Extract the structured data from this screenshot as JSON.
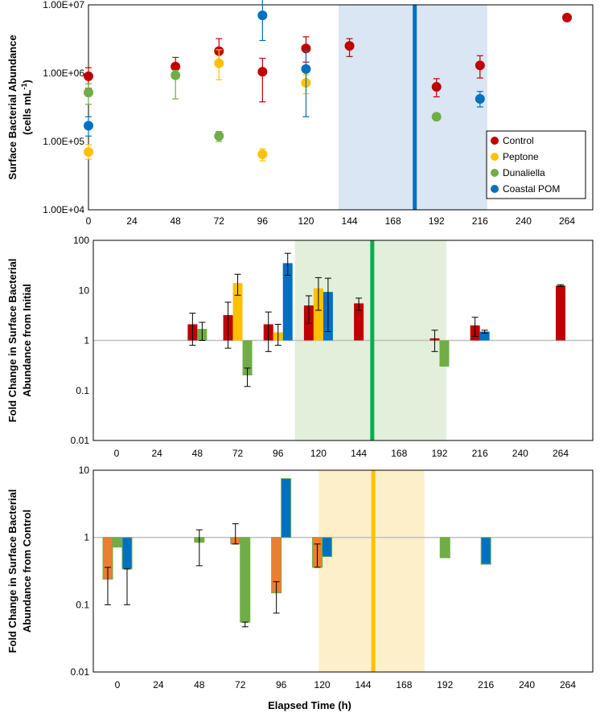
{
  "colors": {
    "control": "#c00000",
    "peptone": "#ffc000",
    "dunaliella": "#70ad47",
    "coastal": "#0070c0",
    "peptone_bar": "#ed7d31",
    "shade_blue": "#dae6f3",
    "shade_green": "#e2efda",
    "shade_orange": "#fdefc9",
    "line_blue": "#0070c0",
    "line_green": "#00b050",
    "line_orange": "#ffc000"
  },
  "x_axis_title": "Elapsed Time (h)",
  "chart_data": [
    {
      "type": "scatter",
      "ylabel_line1": "Surface Bacterial Abundance",
      "ylabel_line2_prefix": "(cells mL",
      "ylabel_line2_sup": "-1",
      "ylabel_line2_suffix": ")",
      "yscale": "log",
      "ylim": [
        10000,
        10000000
      ],
      "xlim": [
        0,
        264
      ],
      "xticks": [
        0,
        24,
        48,
        72,
        96,
        120,
        144,
        168,
        192,
        216,
        240,
        264
      ],
      "xtick_labels": [
        "0",
        "24",
        "48",
        "72",
        "96",
        "120",
        "144",
        "168",
        "192",
        "216",
        "240",
        "264"
      ],
      "yticks": [
        10000,
        100000,
        1000000,
        10000000
      ],
      "ytick_labels": [
        "1.00E+04",
        "1.00E+05",
        "1.00E+06",
        "1.00E+07"
      ],
      "shaded_region": [
        138,
        220
      ],
      "vline": 180,
      "legend": {
        "position": "bottom-right",
        "entries": [
          "Control",
          "Peptone",
          "Dunaliella",
          "Coastal POM"
        ]
      },
      "series": [
        {
          "name": "Control",
          "key": "control",
          "points": [
            {
              "x": 0,
              "y": 900000,
              "lo": 600000,
              "hi": 1200000
            },
            {
              "x": 48,
              "y": 1250000,
              "lo": 850000,
              "hi": 1700000
            },
            {
              "x": 72,
              "y": 2100000,
              "lo": 1350000,
              "hi": 3200000
            },
            {
              "x": 96,
              "y": 1050000,
              "lo": 380000,
              "hi": 1650000
            },
            {
              "x": 120,
              "y": 2300000,
              "lo": 1450000,
              "hi": 3400000
            },
            {
              "x": 144,
              "y": 2500000,
              "lo": 1750000,
              "hi": 3200000
            },
            {
              "x": 192,
              "y": 630000,
              "lo": 450000,
              "hi": 830000
            },
            {
              "x": 216,
              "y": 1300000,
              "lo": 850000,
              "hi": 1800000
            },
            {
              "x": 264,
              "y": 6500000,
              "lo": 6300000,
              "hi": 6700000
            }
          ]
        },
        {
          "name": "Peptone",
          "key": "peptone",
          "points": [
            {
              "x": 0,
              "y": 70000,
              "lo": 55000,
              "hi": 90000
            },
            {
              "x": 72,
              "y": 1400000,
              "lo": 800000,
              "hi": 2200000
            },
            {
              "x": 96,
              "y": 65000,
              "lo": 52000,
              "hi": 78000
            },
            {
              "x": 120,
              "y": 720000,
              "lo": 500000,
              "hi": 950000
            }
          ]
        },
        {
          "name": "Dunaliella",
          "key": "dunaliella",
          "points": [
            {
              "x": 0,
              "y": 520000,
              "lo": 350000,
              "hi": 700000
            },
            {
              "x": 48,
              "y": 930000,
              "lo": 420000,
              "hi": 1100000
            },
            {
              "x": 72,
              "y": 120000,
              "lo": 100000,
              "hi": 140000
            },
            {
              "x": 192,
              "y": 230000,
              "lo": 220000,
              "hi": 240000
            }
          ]
        },
        {
          "name": "Coastal POM",
          "key": "coastal",
          "points": [
            {
              "x": 0,
              "y": 170000,
              "lo": 120000,
              "hi": 230000
            },
            {
              "x": 96,
              "y": 7000000,
              "lo": 3000000,
              "hi": 12000000
            },
            {
              "x": 120,
              "y": 1150000,
              "lo": 230000,
              "hi": 2100000
            },
            {
              "x": 216,
              "y": 420000,
              "lo": 320000,
              "hi": 540000
            }
          ]
        }
      ]
    },
    {
      "type": "bar",
      "ylabel_line1": "Fold Change in Surface Bacterial",
      "ylabel_line2": "Abundance from Initial",
      "yscale": "log",
      "ylim": [
        0.01,
        100
      ],
      "baseline": 1,
      "xticks": [
        0,
        24,
        48,
        72,
        96,
        120,
        144,
        168,
        192,
        216,
        240,
        264
      ],
      "xtick_labels": [
        "0",
        "24",
        "48",
        "72",
        "96",
        "120",
        "144",
        "168",
        "192",
        "216",
        "240",
        "264"
      ],
      "yticks": [
        0.01,
        0.1,
        1,
        10,
        100
      ],
      "ytick_labels": [
        "0.01",
        "0.1",
        "1",
        "10",
        "100"
      ],
      "shaded_region": [
        106,
        196
      ],
      "vline": 152,
      "series_order": [
        "control",
        "peptone",
        "dunaliella",
        "coastal"
      ],
      "bars": [
        {
          "x": 48,
          "key": "control",
          "v": 2.1,
          "lo": 0.8,
          "hi": 3.5
        },
        {
          "x": 48,
          "key": "dunaliella",
          "v": 1.7,
          "lo": 1.0,
          "hi": 2.3
        },
        {
          "x": 72,
          "key": "control",
          "v": 3.2,
          "lo": 0.7,
          "hi": 5.8
        },
        {
          "x": 72,
          "key": "peptone",
          "v": 14,
          "lo": 8,
          "hi": 21
        },
        {
          "x": 72,
          "key": "dunaliella",
          "v": 0.2,
          "lo": 0.12,
          "hi": 0.28
        },
        {
          "x": 96,
          "key": "control",
          "v": 2.1,
          "lo": 0.6,
          "hi": 3.7
        },
        {
          "x": 96,
          "key": "peptone",
          "v": 1.45,
          "lo": 0.8,
          "hi": 2.1
        },
        {
          "x": 96,
          "key": "coastal",
          "v": 35,
          "lo": 20,
          "hi": 55
        },
        {
          "x": 120,
          "key": "control",
          "v": 5,
          "lo": 2.2,
          "hi": 7.8
        },
        {
          "x": 120,
          "key": "peptone",
          "v": 11,
          "lo": 4,
          "hi": 18
        },
        {
          "x": 120,
          "key": "coastal",
          "v": 9.3,
          "lo": 1.5,
          "hi": 17.5
        },
        {
          "x": 144,
          "key": "control",
          "v": 5.5,
          "lo": 4.0,
          "hi": 7.0
        },
        {
          "x": 192,
          "key": "control",
          "v": 1.1,
          "lo": 0.6,
          "hi": 1.6
        },
        {
          "x": 192,
          "key": "dunaliella",
          "v": 0.3,
          "lo": 0.3,
          "hi": 0.3
        },
        {
          "x": 216,
          "key": "control",
          "v": 2.0,
          "lo": 1.2,
          "hi": 2.9
        },
        {
          "x": 216,
          "key": "coastal",
          "v": 1.5,
          "lo": 1.4,
          "hi": 1.6
        },
        {
          "x": 264,
          "key": "control",
          "v": 12.5,
          "lo": 12.0,
          "hi": 13.0
        }
      ]
    },
    {
      "type": "bar",
      "ylabel_line1": "Fold Change in Surface Bacterial",
      "ylabel_line2": "Abundance from Control",
      "yscale": "log",
      "ylim": [
        0.01,
        10
      ],
      "baseline": 1,
      "xticks": [
        0,
        24,
        48,
        72,
        96,
        120,
        144,
        168,
        192,
        216,
        240,
        264
      ],
      "xtick_labels": [
        "0",
        "24",
        "48",
        "72",
        "96",
        "120",
        "144",
        "168",
        "192",
        "216",
        "240",
        "264"
      ],
      "yticks": [
        0.01,
        0.1,
        1,
        10
      ],
      "ytick_labels": [
        "0.01",
        "0.1",
        "1",
        "10"
      ],
      "shaded_region": [
        118,
        180
      ],
      "vline": 150,
      "series_order": [
        "peptone_bar",
        "dunaliella",
        "coastal"
      ],
      "bars": [
        {
          "x": 0,
          "key": "peptone_bar",
          "v": 0.24,
          "lo": 0.1,
          "hi": 0.36
        },
        {
          "x": 0,
          "key": "dunaliella",
          "v": 0.72,
          "lo": 0.72,
          "hi": 0.72
        },
        {
          "x": 0,
          "key": "coastal",
          "v": 0.34,
          "lo": 0.1,
          "hi": 0.34
        },
        {
          "x": 48,
          "key": "dunaliella",
          "v": 0.85,
          "lo": 0.38,
          "hi": 1.3
        },
        {
          "x": 72,
          "key": "peptone_bar",
          "v": 0.8,
          "lo": 0.8,
          "hi": 1.6
        },
        {
          "x": 72,
          "key": "dunaliella",
          "v": 0.055,
          "lo": 0.047,
          "hi": 0.055
        },
        {
          "x": 96,
          "key": "peptone_bar",
          "v": 0.15,
          "lo": 0.075,
          "hi": 0.22
        },
        {
          "x": 96,
          "key": "coastal",
          "v": 7.5,
          "lo": 7.5,
          "hi": 7.5
        },
        {
          "x": 120,
          "key": "peptone_bar",
          "v": 0.36,
          "lo": 0.36,
          "hi": 0.8
        },
        {
          "x": 120,
          "key": "coastal",
          "v": 0.52,
          "lo": 0.52,
          "hi": 0.52
        },
        {
          "x": 192,
          "key": "dunaliella",
          "v": 0.5,
          "lo": 0.5,
          "hi": 0.5
        },
        {
          "x": 216,
          "key": "coastal",
          "v": 0.4,
          "lo": 0.4,
          "hi": 0.4
        }
      ]
    }
  ]
}
